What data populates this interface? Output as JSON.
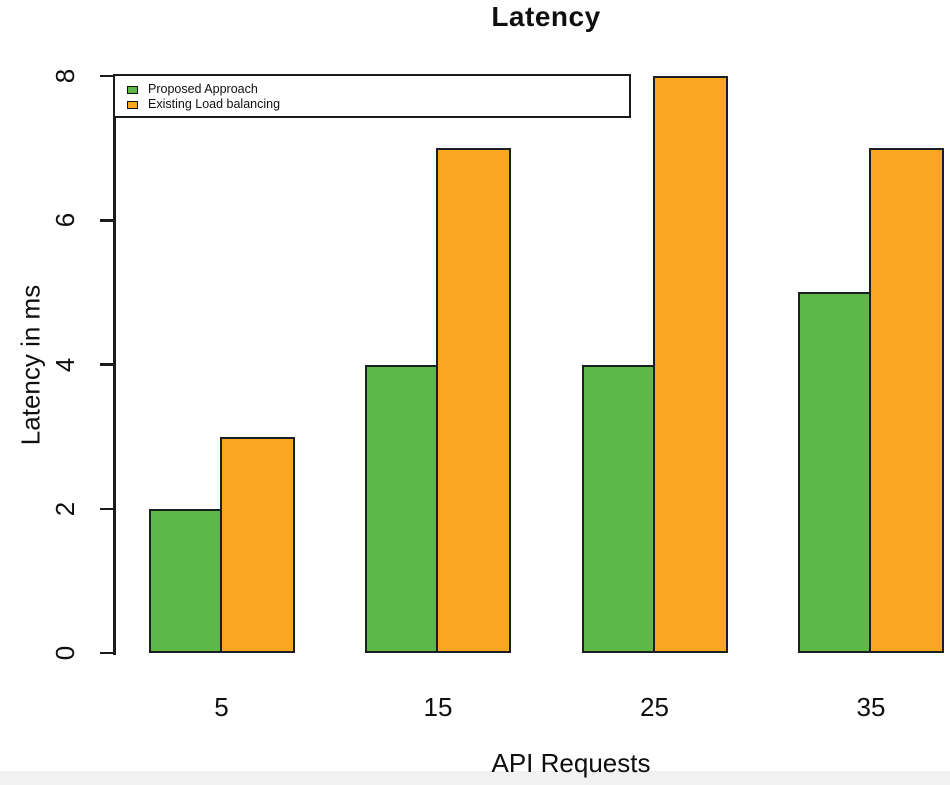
{
  "chart_data": {
    "type": "bar",
    "title": "Latency",
    "xlabel": "API Requests",
    "ylabel": "Latency in ms",
    "categories": [
      "5",
      "15",
      "25",
      "35"
    ],
    "series": [
      {
        "name": "Proposed Approach",
        "color": "#5cb947",
        "values": [
          2,
          4,
          4,
          5
        ]
      },
      {
        "name": "Existing Load balancing",
        "color": "#f9a620",
        "values": [
          3,
          7,
          8,
          7
        ]
      }
    ],
    "ylim": [
      0,
      8
    ],
    "yticks": [
      0,
      2,
      4,
      6,
      8
    ],
    "grid": false,
    "legend_position": "top-left",
    "bar_border_color": "#1b1f22",
    "axis_color": "#1b1b1b",
    "y_tick_label_rotation": -90
  }
}
